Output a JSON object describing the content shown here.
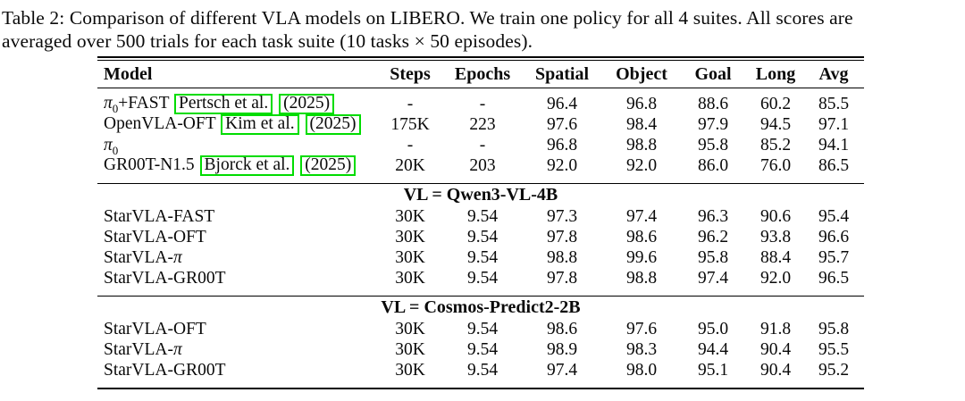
{
  "caption": {
    "line1": "Table 2: Comparison of different VLA models on LIBERO. We train one policy for all 4 suites. All scores are",
    "line2": "averaged over 500 trials for each task suite (10 tasks × 50 episodes)."
  },
  "colors": {
    "link_box": "#00dc00",
    "text": "#0a0a0a",
    "background": "#ffffff"
  },
  "table": {
    "columns": [
      "Model",
      "Steps",
      "Epochs",
      "Spatial",
      "Object",
      "Goal",
      "Long",
      "Avg"
    ],
    "sections": [
      {
        "header": null,
        "rows": [
          {
            "model": [
              {
                "type": "math",
                "v": "π"
              },
              {
                "type": "sub",
                "v": "0"
              },
              {
                "type": "text",
                "v": "+FAST "
              },
              {
                "type": "link",
                "v": "Pertsch et al."
              },
              {
                "type": "text",
                "v": " "
              },
              {
                "type": "link",
                "v": "(2025)"
              }
            ],
            "values": [
              "-",
              "-",
              "96.4",
              "96.8",
              "88.6",
              "60.2",
              "85.5"
            ]
          },
          {
            "model": [
              {
                "type": "text",
                "v": "OpenVLA-OFT "
              },
              {
                "type": "link",
                "v": "Kim et al."
              },
              {
                "type": "text",
                "v": " "
              },
              {
                "type": "link",
                "v": "(2025)"
              }
            ],
            "values": [
              "175K",
              "223",
              "97.6",
              "98.4",
              "97.9",
              "94.5",
              "97.1"
            ]
          },
          {
            "model": [
              {
                "type": "math",
                "v": "π"
              },
              {
                "type": "sub",
                "v": "0"
              }
            ],
            "values": [
              "-",
              "-",
              "96.8",
              "98.8",
              "95.8",
              "85.2",
              "94.1"
            ]
          },
          {
            "model": [
              {
                "type": "text",
                "v": "GR00T-N1.5 "
              },
              {
                "type": "link",
                "v": "Bjorck et al."
              },
              {
                "type": "text",
                "v": " "
              },
              {
                "type": "link",
                "v": "(2025)"
              }
            ],
            "values": [
              "20K",
              "203",
              "92.0",
              "92.0",
              "86.0",
              "76.0",
              "86.5"
            ]
          }
        ]
      },
      {
        "header": "VL = Qwen3-VL-4B",
        "rows": [
          {
            "model": [
              {
                "type": "text",
                "v": "StarVLA-FAST"
              }
            ],
            "values": [
              "30K",
              "9.54",
              "97.3",
              "97.4",
              "96.3",
              "90.6",
              "95.4"
            ]
          },
          {
            "model": [
              {
                "type": "text",
                "v": "StarVLA-OFT"
              }
            ],
            "values": [
              "30K",
              "9.54",
              "97.8",
              "98.6",
              "96.2",
              "93.8",
              "96.6"
            ]
          },
          {
            "model": [
              {
                "type": "text",
                "v": "StarVLA-"
              },
              {
                "type": "math",
                "v": "π"
              }
            ],
            "values": [
              "30K",
              "9.54",
              "98.8",
              "99.6",
              "95.8",
              "88.4",
              "95.7"
            ]
          },
          {
            "model": [
              {
                "type": "text",
                "v": "StarVLA-GR00T"
              }
            ],
            "values": [
              "30K",
              "9.54",
              "97.8",
              "98.8",
              "97.4",
              "92.0",
              "96.5"
            ]
          }
        ]
      },
      {
        "header": "VL = Cosmos-Predict2-2B",
        "rows": [
          {
            "model": [
              {
                "type": "text",
                "v": "StarVLA-OFT"
              }
            ],
            "values": [
              "30K",
              "9.54",
              "98.6",
              "97.6",
              "95.0",
              "91.8",
              "95.8"
            ]
          },
          {
            "model": [
              {
                "type": "text",
                "v": "StarVLA-"
              },
              {
                "type": "math",
                "v": "π"
              }
            ],
            "values": [
              "30K",
              "9.54",
              "98.9",
              "98.3",
              "94.4",
              "90.4",
              "95.5"
            ]
          },
          {
            "model": [
              {
                "type": "text",
                "v": "StarVLA-GR00T"
              }
            ],
            "values": [
              "30K",
              "9.54",
              "97.4",
              "98.0",
              "95.1",
              "90.4",
              "95.2"
            ]
          }
        ]
      }
    ]
  }
}
